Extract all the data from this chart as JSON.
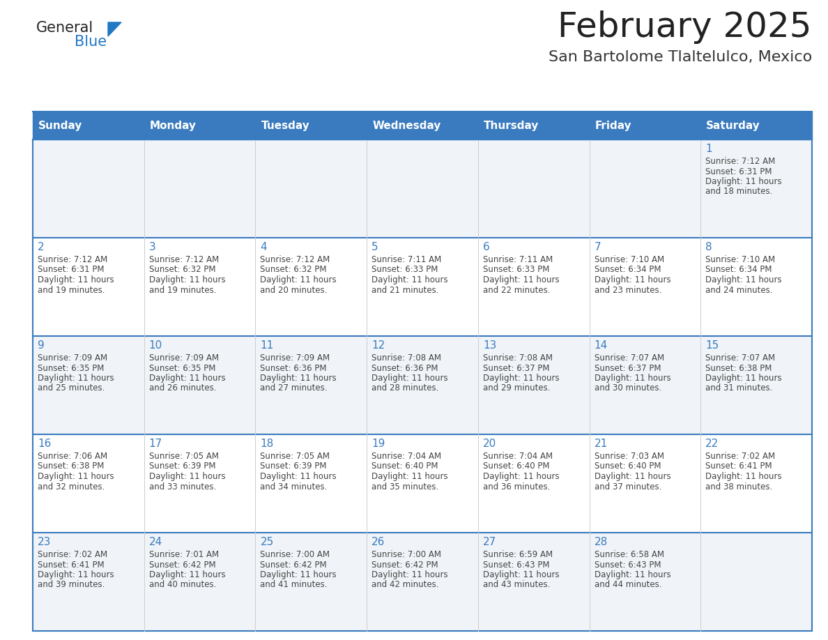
{
  "title": "February 2025",
  "subtitle": "San Bartolome Tlaltelulco, Mexico",
  "header_bg_color": "#3a7bbf",
  "header_text_color": "#ffffff",
  "cell_bg_even": "#f0f4f8",
  "cell_bg_odd": "#ffffff",
  "border_color": "#3a7bbf",
  "row_line_color": "#3a7bbf",
  "col_line_color": "#cccccc",
  "title_color": "#222222",
  "subtitle_color": "#333333",
  "day_num_color": "#3a7bbf",
  "info_color": "#444444",
  "logo_general_color": "#222222",
  "logo_blue_color": "#2178c4",
  "weekdays": [
    "Sunday",
    "Monday",
    "Tuesday",
    "Wednesday",
    "Thursday",
    "Friday",
    "Saturday"
  ],
  "calendar": [
    [
      null,
      null,
      null,
      null,
      null,
      null,
      1
    ],
    [
      2,
      3,
      4,
      5,
      6,
      7,
      8
    ],
    [
      9,
      10,
      11,
      12,
      13,
      14,
      15
    ],
    [
      16,
      17,
      18,
      19,
      20,
      21,
      22
    ],
    [
      23,
      24,
      25,
      26,
      27,
      28,
      null
    ]
  ],
  "day_data": {
    "1": {
      "sunrise": "7:12 AM",
      "sunset": "6:31 PM",
      "daylight_line1": "Daylight: 11 hours",
      "daylight_line2": "and 18 minutes."
    },
    "2": {
      "sunrise": "7:12 AM",
      "sunset": "6:31 PM",
      "daylight_line1": "Daylight: 11 hours",
      "daylight_line2": "and 19 minutes."
    },
    "3": {
      "sunrise": "7:12 AM",
      "sunset": "6:32 PM",
      "daylight_line1": "Daylight: 11 hours",
      "daylight_line2": "and 19 minutes."
    },
    "4": {
      "sunrise": "7:12 AM",
      "sunset": "6:32 PM",
      "daylight_line1": "Daylight: 11 hours",
      "daylight_line2": "and 20 minutes."
    },
    "5": {
      "sunrise": "7:11 AM",
      "sunset": "6:33 PM",
      "daylight_line1": "Daylight: 11 hours",
      "daylight_line2": "and 21 minutes."
    },
    "6": {
      "sunrise": "7:11 AM",
      "sunset": "6:33 PM",
      "daylight_line1": "Daylight: 11 hours",
      "daylight_line2": "and 22 minutes."
    },
    "7": {
      "sunrise": "7:10 AM",
      "sunset": "6:34 PM",
      "daylight_line1": "Daylight: 11 hours",
      "daylight_line2": "and 23 minutes."
    },
    "8": {
      "sunrise": "7:10 AM",
      "sunset": "6:34 PM",
      "daylight_line1": "Daylight: 11 hours",
      "daylight_line2": "and 24 minutes."
    },
    "9": {
      "sunrise": "7:09 AM",
      "sunset": "6:35 PM",
      "daylight_line1": "Daylight: 11 hours",
      "daylight_line2": "and 25 minutes."
    },
    "10": {
      "sunrise": "7:09 AM",
      "sunset": "6:35 PM",
      "daylight_line1": "Daylight: 11 hours",
      "daylight_line2": "and 26 minutes."
    },
    "11": {
      "sunrise": "7:09 AM",
      "sunset": "6:36 PM",
      "daylight_line1": "Daylight: 11 hours",
      "daylight_line2": "and 27 minutes."
    },
    "12": {
      "sunrise": "7:08 AM",
      "sunset": "6:36 PM",
      "daylight_line1": "Daylight: 11 hours",
      "daylight_line2": "and 28 minutes."
    },
    "13": {
      "sunrise": "7:08 AM",
      "sunset": "6:37 PM",
      "daylight_line1": "Daylight: 11 hours",
      "daylight_line2": "and 29 minutes."
    },
    "14": {
      "sunrise": "7:07 AM",
      "sunset": "6:37 PM",
      "daylight_line1": "Daylight: 11 hours",
      "daylight_line2": "and 30 minutes."
    },
    "15": {
      "sunrise": "7:07 AM",
      "sunset": "6:38 PM",
      "daylight_line1": "Daylight: 11 hours",
      "daylight_line2": "and 31 minutes."
    },
    "16": {
      "sunrise": "7:06 AM",
      "sunset": "6:38 PM",
      "daylight_line1": "Daylight: 11 hours",
      "daylight_line2": "and 32 minutes."
    },
    "17": {
      "sunrise": "7:05 AM",
      "sunset": "6:39 PM",
      "daylight_line1": "Daylight: 11 hours",
      "daylight_line2": "and 33 minutes."
    },
    "18": {
      "sunrise": "7:05 AM",
      "sunset": "6:39 PM",
      "daylight_line1": "Daylight: 11 hours",
      "daylight_line2": "and 34 minutes."
    },
    "19": {
      "sunrise": "7:04 AM",
      "sunset": "6:40 PM",
      "daylight_line1": "Daylight: 11 hours",
      "daylight_line2": "and 35 minutes."
    },
    "20": {
      "sunrise": "7:04 AM",
      "sunset": "6:40 PM",
      "daylight_line1": "Daylight: 11 hours",
      "daylight_line2": "and 36 minutes."
    },
    "21": {
      "sunrise": "7:03 AM",
      "sunset": "6:40 PM",
      "daylight_line1": "Daylight: 11 hours",
      "daylight_line2": "and 37 minutes."
    },
    "22": {
      "sunrise": "7:02 AM",
      "sunset": "6:41 PM",
      "daylight_line1": "Daylight: 11 hours",
      "daylight_line2": "and 38 minutes."
    },
    "23": {
      "sunrise": "7:02 AM",
      "sunset": "6:41 PM",
      "daylight_line1": "Daylight: 11 hours",
      "daylight_line2": "and 39 minutes."
    },
    "24": {
      "sunrise": "7:01 AM",
      "sunset": "6:42 PM",
      "daylight_line1": "Daylight: 11 hours",
      "daylight_line2": "and 40 minutes."
    },
    "25": {
      "sunrise": "7:00 AM",
      "sunset": "6:42 PM",
      "daylight_line1": "Daylight: 11 hours",
      "daylight_line2": "and 41 minutes."
    },
    "26": {
      "sunrise": "7:00 AM",
      "sunset": "6:42 PM",
      "daylight_line1": "Daylight: 11 hours",
      "daylight_line2": "and 42 minutes."
    },
    "27": {
      "sunrise": "6:59 AM",
      "sunset": "6:43 PM",
      "daylight_line1": "Daylight: 11 hours",
      "daylight_line2": "and 43 minutes."
    },
    "28": {
      "sunrise": "6:58 AM",
      "sunset": "6:43 PM",
      "daylight_line1": "Daylight: 11 hours",
      "daylight_line2": "and 44 minutes."
    }
  }
}
